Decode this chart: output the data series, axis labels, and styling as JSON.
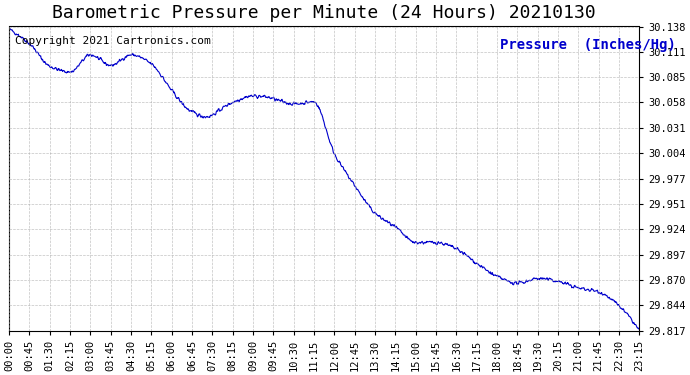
{
  "title": "Barometric Pressure per Minute (24 Hours) 20210130",
  "ylabel": "Pressure  (Inches/Hg)",
  "copyright_text": "Copyright 2021 Cartronics.com",
  "line_color": "#0000cc",
  "background_color": "#ffffff",
  "grid_color": "#aaaaaa",
  "title_fontsize": 13,
  "ylabel_fontsize": 10,
  "copyright_fontsize": 8,
  "tick_fontsize": 7.5,
  "ytick_labels": [
    30.138,
    30.111,
    30.085,
    30.058,
    30.031,
    30.004,
    29.977,
    29.951,
    29.924,
    29.897,
    29.87,
    29.844,
    29.817
  ],
  "ylim_min": 29.817,
  "ylim_max": 30.138,
  "xtick_labels": [
    "00:00",
    "00:45",
    "01:30",
    "02:15",
    "03:00",
    "03:45",
    "04:30",
    "05:15",
    "06:00",
    "06:45",
    "07:30",
    "08:15",
    "09:00",
    "09:45",
    "10:30",
    "11:15",
    "12:00",
    "12:45",
    "13:30",
    "14:15",
    "15:00",
    "15:45",
    "16:30",
    "17:15",
    "18:00",
    "18:45",
    "19:30",
    "20:15",
    "21:00",
    "21:45",
    "22:30",
    "23:15"
  ],
  "keypoints_x": [
    0,
    45,
    90,
    135,
    180,
    225,
    270,
    315,
    360,
    405,
    450,
    495,
    540,
    585,
    630,
    675,
    720,
    765,
    810,
    855,
    900,
    945,
    990,
    1035,
    1080,
    1125,
    1170,
    1215,
    1260,
    1305,
    1350,
    1395
  ],
  "keypoints_y": [
    30.135,
    30.12,
    30.096,
    30.09,
    30.108,
    30.097,
    30.108,
    30.098,
    30.068,
    30.038,
    30.022,
    30.028,
    30.042,
    30.052,
    30.054,
    30.058,
    30.004,
    29.97,
    29.941,
    29.926,
    29.91,
    29.91,
    29.903,
    29.888,
    29.874,
    29.867,
    29.872,
    29.869,
    29.862,
    29.858,
    29.843,
    29.817
  ]
}
